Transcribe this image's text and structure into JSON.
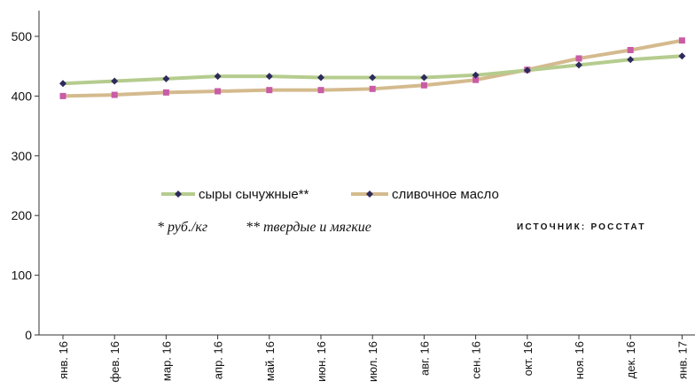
{
  "chart_data": {
    "type": "line",
    "categories": [
      "янв. 16",
      "фев. 16",
      "мар. 16",
      "апр. 16",
      "май. 16",
      "июн. 16",
      "июл. 16",
      "авг. 16",
      "сен. 16",
      "окт. 16",
      "ноя. 16",
      "дек. 16",
      "янв. 17"
    ],
    "series": [
      {
        "name": "сыры сычужные**",
        "color": "#b5cc8e",
        "marker_color": "#2e2a5c",
        "values": [
          421,
          425,
          429,
          433,
          433,
          431,
          431,
          431,
          435,
          443,
          452,
          461,
          467
        ]
      },
      {
        "name": "сливочное масло",
        "color": "#d4ba8e",
        "marker_color": "#c95ca6",
        "values": [
          400,
          402,
          406,
          408,
          410,
          410,
          412,
          418,
          427,
          444,
          463,
          477,
          493
        ]
      }
    ],
    "ylim": [
      0,
      500
    ],
    "yticks": [
      0,
      100,
      200,
      300,
      400,
      500
    ],
    "grid": false,
    "legend_position": "middle",
    "footnote_1": "* руб./кг",
    "footnote_2": "** твердые и мягкие",
    "source": "ИСТОЧНИК: РОССТАТ"
  }
}
